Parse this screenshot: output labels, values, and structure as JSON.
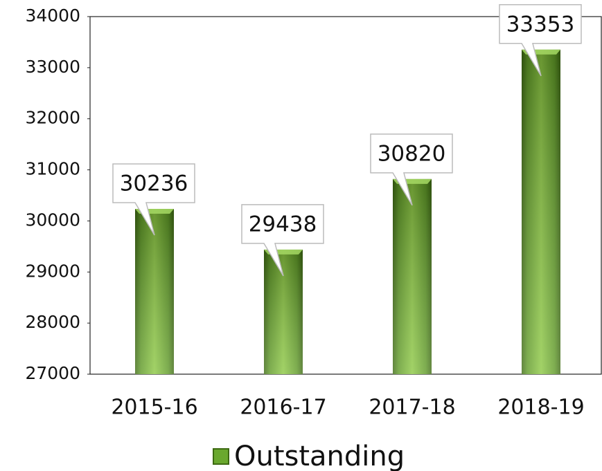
{
  "chart_data": {
    "type": "bar",
    "categories": [
      "2015-16",
      "2016-17",
      "2017-18",
      "2018-19"
    ],
    "series": [
      {
        "name": "Outstanding",
        "color": "#6aa82e",
        "values": [
          30236,
          29438,
          30820,
          33353
        ]
      }
    ],
    "ylim": [
      27000,
      34000
    ],
    "yticks": [
      27000,
      28000,
      29000,
      30000,
      31000,
      32000,
      33000,
      34000
    ],
    "grid": false,
    "legend": "bottom"
  }
}
